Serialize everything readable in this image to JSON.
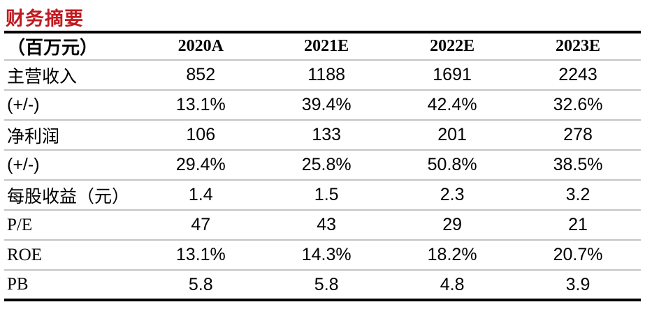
{
  "title": "财务摘要",
  "colors": {
    "title_red": "#C1191F",
    "border_black": "#000000",
    "row_line_gray": "#C4C4C4"
  },
  "table": {
    "unit_label": "（百万元）",
    "columns": [
      "2020A",
      "2021E",
      "2022E",
      "2023E"
    ],
    "rows": [
      {
        "label": "主营收入",
        "latin_serif": false,
        "values": [
          "852",
          "1188",
          "1691",
          "2243"
        ]
      },
      {
        "label": "(+/-)",
        "latin_serif": false,
        "values": [
          "13.1%",
          "39.4%",
          "42.4%",
          "32.6%"
        ]
      },
      {
        "label": "净利润",
        "latin_serif": false,
        "values": [
          "106",
          "133",
          "201",
          "278"
        ]
      },
      {
        "label": "(+/-)",
        "latin_serif": false,
        "values": [
          "29.4%",
          "25.8%",
          "50.8%",
          "38.5%"
        ]
      },
      {
        "label": "每股收益（元）",
        "latin_serif": false,
        "values": [
          "1.4",
          "1.5",
          "2.3",
          "3.2"
        ]
      },
      {
        "label": "P/E",
        "latin_serif": true,
        "values": [
          "47",
          "43",
          "29",
          "21"
        ]
      },
      {
        "label": "ROE",
        "latin_serif": true,
        "values": [
          "13.1%",
          "14.3%",
          "18.2%",
          "20.7%"
        ]
      },
      {
        "label": "PB",
        "latin_serif": true,
        "values": [
          "5.8",
          "5.8",
          "4.8",
          "3.9"
        ]
      }
    ]
  }
}
